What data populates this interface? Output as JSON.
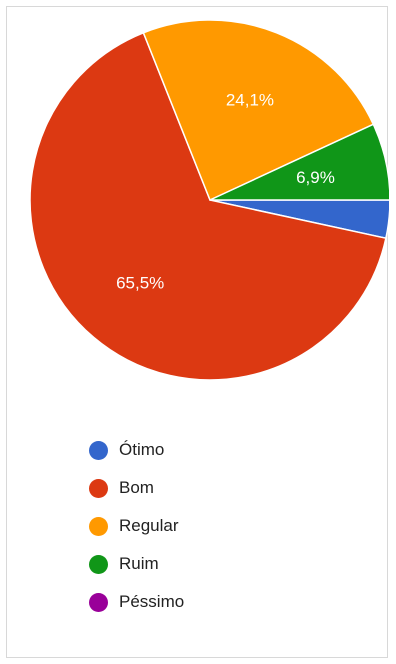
{
  "chart_data": {
    "type": "pie",
    "categories": [
      "Ótimo",
      "Bom",
      "Regular",
      "Ruim",
      "Péssimo"
    ],
    "values": [
      3.4,
      65.5,
      24.1,
      6.9,
      0
    ],
    "data_labels": [
      "",
      "65,5%",
      "24,1%",
      "6,9%",
      ""
    ],
    "colors": [
      "#3366cc",
      "#dc3912",
      "#ff9900",
      "#109618",
      "#990099"
    ],
    "legend_position": "bottom-left",
    "title": ""
  }
}
